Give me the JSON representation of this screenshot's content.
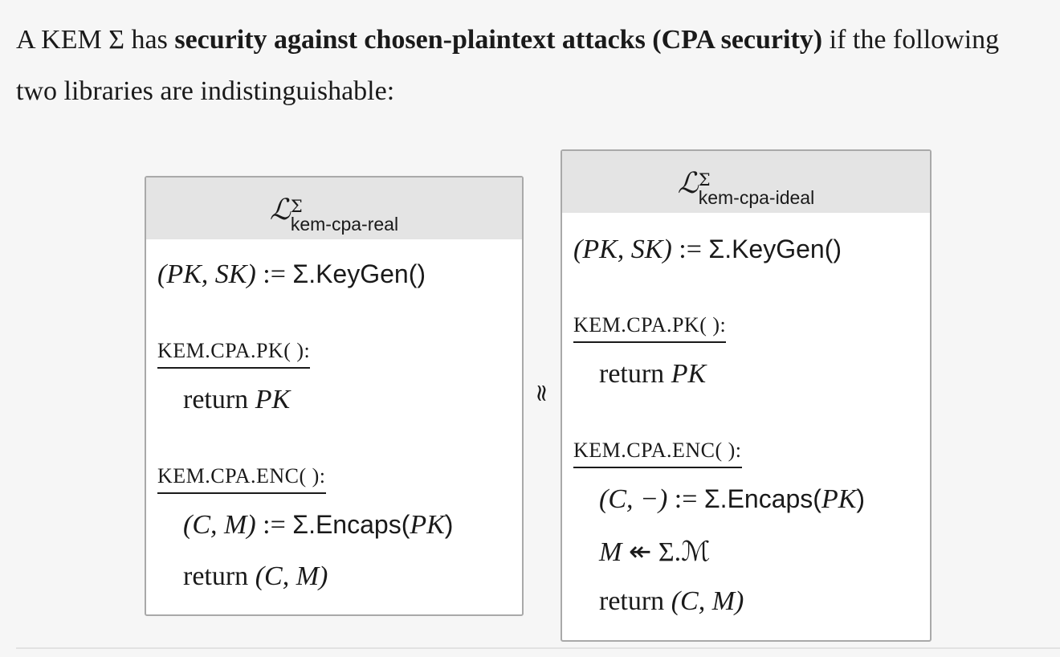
{
  "intro": {
    "pre": "A KEM Σ has ",
    "bold": "security against chosen-plaintext attacks (CPA security)",
    "post": " if the following two libraries are indistinguishable:"
  },
  "real": {
    "L": "ℒ",
    "sup": "Σ",
    "sub": "kem-cpa-real",
    "keygen": {
      "lhs": "(PK, SK)",
      "op": " := ",
      "call": "Σ.KeyGen()"
    },
    "pk_oracle": "KEM.CPA.PK( ):",
    "pk_return_kw": "return ",
    "pk_return_val": "PK",
    "enc_oracle": "KEM.CPA.ENC( ):",
    "encaps": {
      "lhs": "(C, M)",
      "op": " := ",
      "call": "Σ.Encaps(",
      "arg": "PK",
      "close": ")"
    },
    "enc_return_kw": "return ",
    "enc_return_val": "(C, M)"
  },
  "relation": "≈",
  "ideal": {
    "L": "ℒ",
    "sup": "Σ",
    "sub": "kem-cpa-ideal",
    "keygen": {
      "lhs": "(PK, SK)",
      "op": " := ",
      "call": "Σ.KeyGen()"
    },
    "pk_oracle": "KEM.CPA.PK( ):",
    "pk_return_kw": "return ",
    "pk_return_val": "PK",
    "enc_oracle": "KEM.CPA.ENC( ):",
    "encaps": {
      "lhs": "(C, −)",
      "op": " := ",
      "call": "Σ.Encaps(",
      "arg": "PK",
      "close": ")"
    },
    "sample": {
      "lhs": "M",
      "op": " ↞ ",
      "rhs": "Σ.ℳ"
    },
    "enc_return_kw": "return ",
    "enc_return_val": "(C, M)"
  }
}
